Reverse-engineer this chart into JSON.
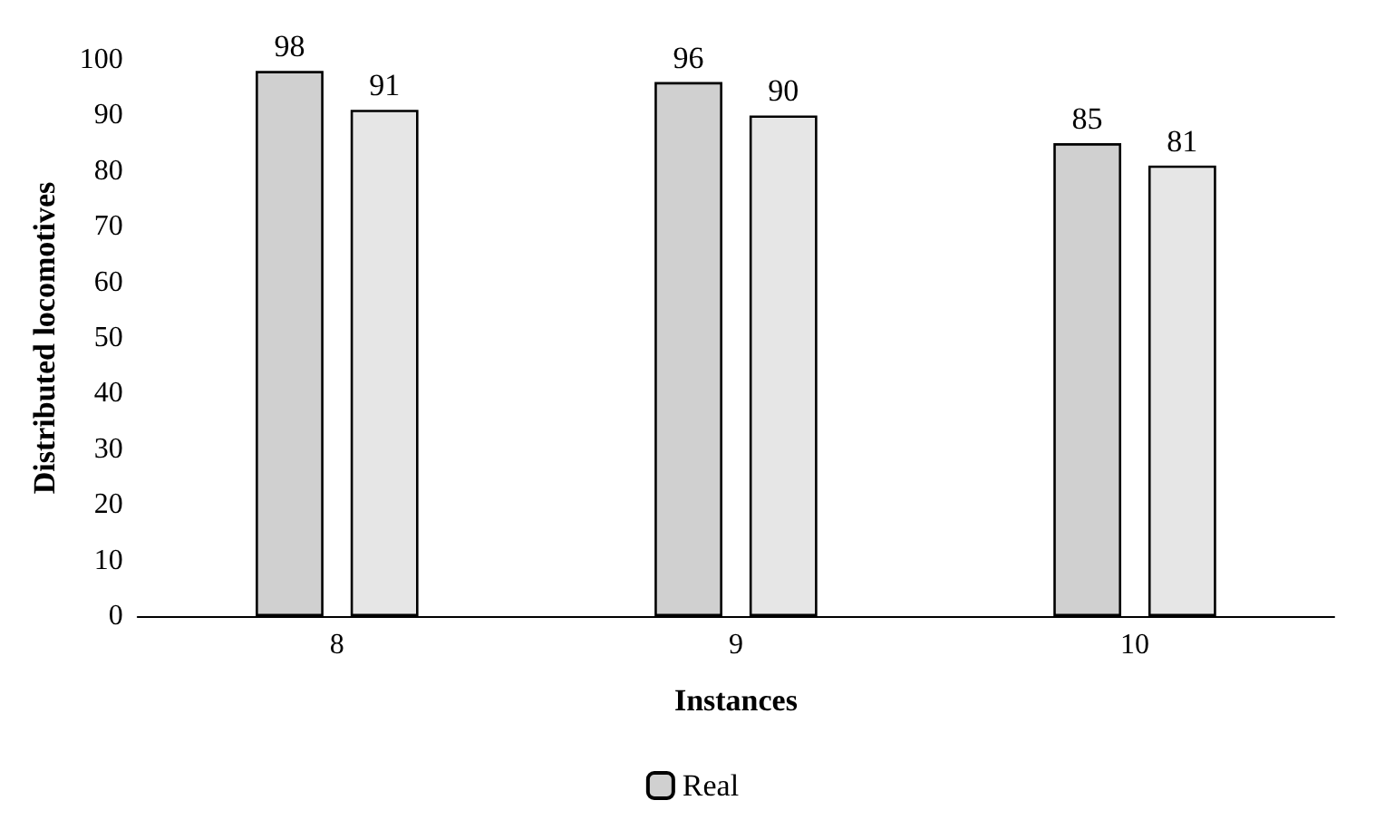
{
  "chart_data": {
    "type": "bar",
    "xlabel": "Instances",
    "ylabel": "Distributed locomotives",
    "categories": [
      "8",
      "9",
      "10"
    ],
    "series": [
      {
        "name": "Real",
        "color": "#d0d0d0",
        "values": [
          98,
          96,
          85
        ]
      },
      {
        "color": "#e6e6e6",
        "values": [
          91,
          90,
          81
        ]
      }
    ],
    "ylim": [
      0,
      100
    ],
    "yticks": [
      0,
      10,
      20,
      30,
      40,
      50,
      60,
      70,
      80,
      90,
      100
    ],
    "grid": false,
    "legend": "bottom",
    "data_labels": true
  }
}
